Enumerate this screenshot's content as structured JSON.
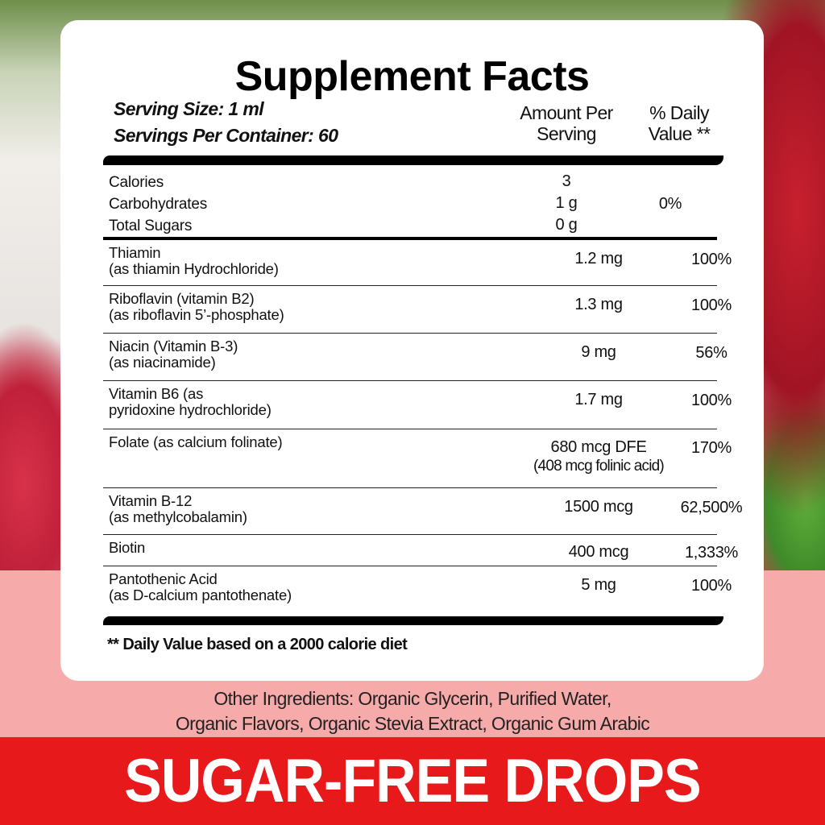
{
  "title": "Supplement Facts",
  "serving_size": "Serving Size: 1 ml",
  "servings_per_container": "Servings Per Container: 60",
  "col_amount": [
    "Amount Per",
    "Serving"
  ],
  "col_dv": [
    "% Daily",
    "Value **"
  ],
  "top_block": {
    "labels": [
      "Calories",
      "Carbohydrates",
      "Total Sugars"
    ],
    "amounts": [
      "3",
      "1 g",
      "0 g"
    ],
    "dv": "0%"
  },
  "rows": [
    {
      "name": [
        "Thiamin",
        "(as thiamin Hydrochloride)"
      ],
      "amount": [
        "1.2 mg"
      ],
      "dv": "100%"
    },
    {
      "name": [
        "Riboflavin (vitamin B2)",
        "(as riboflavin 5’-phosphate)"
      ],
      "amount": [
        "1.3 mg"
      ],
      "dv": "100%"
    },
    {
      "name": [
        "Niacin (Vitamin B-3)",
        "(as niacinamide)"
      ],
      "amount": [
        "9 mg"
      ],
      "dv": "56%"
    },
    {
      "name": [
        "Vitamin B6 (as",
        "pyridoxine hydrochloride)"
      ],
      "amount": [
        "1.7 mg"
      ],
      "dv": "100%"
    },
    {
      "name": [
        "Folate (as calcium folinate)",
        ""
      ],
      "amount": [
        "680 mcg DFE",
        "(408 mcg folinic acid)"
      ],
      "dv": "170%"
    },
    {
      "name": [
        "Vitamin B-12",
        "(as methylcobalamin)"
      ],
      "amount": [
        "1500 mcg"
      ],
      "dv": "62,500%"
    },
    {
      "name": [
        "Biotin",
        ""
      ],
      "amount": [
        "400 mcg"
      ],
      "dv": "1,333%"
    },
    {
      "name": [
        "Pantothenic Acid",
        "(as D-calcium pantothenate)"
      ],
      "amount": [
        "5 mg"
      ],
      "dv": "100%"
    }
  ],
  "footnote": "** Daily Value based on a 2000 calorie diet",
  "other_ingredients": [
    "Other Ingredients: Organic Glycerin, Purified Water,",
    "Organic Flavors, Organic Stevia Extract, Organic Gum Arabic"
  ],
  "banner": "SUGAR-FREE DROPS",
  "colors": {
    "banner_red": "#e8191b",
    "band_pink": "#f7aaaa",
    "card": "#ffffff"
  }
}
